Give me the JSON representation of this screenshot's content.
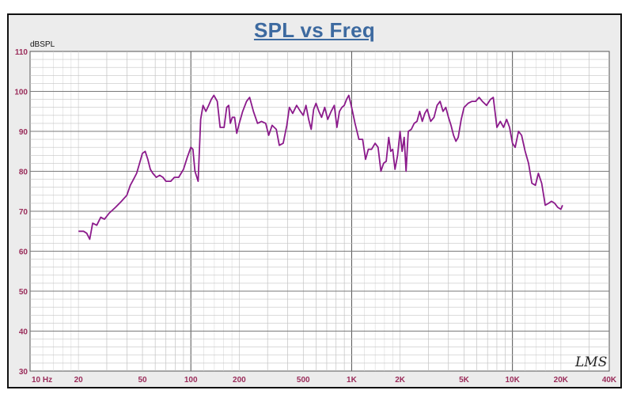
{
  "chart_data": {
    "type": "line",
    "title": "SPL vs Freq",
    "ylabel": "dBSPL",
    "xscale": "log",
    "xlim": [
      10,
      40000
    ],
    "ylim": [
      30,
      110
    ],
    "grid": true,
    "yticks": [
      30,
      40,
      50,
      60,
      70,
      80,
      90,
      100,
      110
    ],
    "xticks": [
      {
        "value": 10,
        "label": "10 Hz"
      },
      {
        "value": 20,
        "label": "20"
      },
      {
        "value": 50,
        "label": "50"
      },
      {
        "value": 100,
        "label": "100"
      },
      {
        "value": 200,
        "label": "200"
      },
      {
        "value": 500,
        "label": "500"
      },
      {
        "value": 1000,
        "label": "1K"
      },
      {
        "value": 2000,
        "label": "2K"
      },
      {
        "value": 5000,
        "label": "5K"
      },
      {
        "value": 10000,
        "label": "10K"
      },
      {
        "value": 20000,
        "label": "20K"
      },
      {
        "value": 40000,
        "label": "40K"
      }
    ],
    "series": [
      {
        "color": "#8b1a8b",
        "points": [
          [
            20,
            65
          ],
          [
            21.5,
            65
          ],
          [
            22.5,
            64.5
          ],
          [
            23.5,
            63
          ],
          [
            24.5,
            67
          ],
          [
            26,
            66.5
          ],
          [
            27.5,
            68.5
          ],
          [
            29,
            68
          ],
          [
            31,
            69.5
          ],
          [
            34,
            71
          ],
          [
            37,
            72.5
          ],
          [
            40,
            74
          ],
          [
            42,
            76.5
          ],
          [
            44,
            78
          ],
          [
            46,
            79.5
          ],
          [
            48,
            82
          ],
          [
            50,
            84.5
          ],
          [
            52,
            85
          ],
          [
            54,
            83
          ],
          [
            56,
            80.5
          ],
          [
            58,
            79.5
          ],
          [
            61,
            78.5
          ],
          [
            64,
            79
          ],
          [
            67,
            78.5
          ],
          [
            70,
            77.5
          ],
          [
            75,
            77.5
          ],
          [
            79,
            78.5
          ],
          [
            84,
            78.5
          ],
          [
            90,
            80.5
          ],
          [
            95,
            83.5
          ],
          [
            100,
            86
          ],
          [
            103,
            85.5
          ],
          [
            106,
            80
          ],
          [
            111,
            77.5
          ],
          [
            115,
            93
          ],
          [
            119,
            96.5
          ],
          [
            124,
            95
          ],
          [
            129,
            96.5
          ],
          [
            134,
            98
          ],
          [
            139,
            99
          ],
          [
            146,
            97.5
          ],
          [
            152,
            91
          ],
          [
            161,
            91
          ],
          [
            167,
            96
          ],
          [
            172,
            96.5
          ],
          [
            176,
            92
          ],
          [
            181,
            93.5
          ],
          [
            187,
            93.5
          ],
          [
            193,
            89.5
          ],
          [
            200,
            92
          ],
          [
            210,
            95
          ],
          [
            222,
            97.5
          ],
          [
            232,
            98.5
          ],
          [
            245,
            95
          ],
          [
            260,
            92
          ],
          [
            275,
            92.5
          ],
          [
            292,
            92
          ],
          [
            305,
            89
          ],
          [
            320,
            91.5
          ],
          [
            340,
            90.5
          ],
          [
            355,
            86.5
          ],
          [
            375,
            87
          ],
          [
            395,
            91.5
          ],
          [
            410,
            96
          ],
          [
            430,
            94.5
          ],
          [
            455,
            96.5
          ],
          [
            480,
            95
          ],
          [
            500,
            94
          ],
          [
            520,
            96.5
          ],
          [
            540,
            93
          ],
          [
            560,
            90.5
          ],
          [
            580,
            95.5
          ],
          [
            600,
            97
          ],
          [
            625,
            95
          ],
          [
            650,
            93.5
          ],
          [
            680,
            96
          ],
          [
            710,
            93
          ],
          [
            745,
            95
          ],
          [
            780,
            96.5
          ],
          [
            810,
            91
          ],
          [
            840,
            95
          ],
          [
            870,
            96
          ],
          [
            900,
            96.5
          ],
          [
            930,
            98
          ],
          [
            960,
            99
          ],
          [
            1000,
            96
          ],
          [
            1050,
            92
          ],
          [
            1110,
            88
          ],
          [
            1170,
            88
          ],
          [
            1220,
            83
          ],
          [
            1270,
            85.5
          ],
          [
            1330,
            85.5
          ],
          [
            1400,
            87
          ],
          [
            1460,
            86
          ],
          [
            1520,
            80
          ],
          [
            1580,
            82
          ],
          [
            1640,
            82.5
          ],
          [
            1700,
            88.5
          ],
          [
            1750,
            85
          ],
          [
            1800,
            85.5
          ],
          [
            1860,
            80.5
          ],
          [
            1930,
            84
          ],
          [
            2000,
            90
          ],
          [
            2060,
            85
          ],
          [
            2120,
            88.5
          ],
          [
            2180,
            80
          ],
          [
            2250,
            90
          ],
          [
            2350,
            90.5
          ],
          [
            2450,
            92
          ],
          [
            2550,
            92.5
          ],
          [
            2650,
            95
          ],
          [
            2750,
            92.5
          ],
          [
            2850,
            94.5
          ],
          [
            2950,
            95.5
          ],
          [
            3100,
            92.5
          ],
          [
            3250,
            93.5
          ],
          [
            3400,
            96.5
          ],
          [
            3550,
            97.5
          ],
          [
            3700,
            95
          ],
          [
            3850,
            96
          ],
          [
            4000,
            93.5
          ],
          [
            4150,
            91.5
          ],
          [
            4300,
            89
          ],
          [
            4450,
            87.5
          ],
          [
            4600,
            88.5
          ],
          [
            4800,
            93
          ],
          [
            5000,
            96
          ],
          [
            5300,
            97
          ],
          [
            5600,
            97.5
          ],
          [
            5900,
            97.5
          ],
          [
            6200,
            98.5
          ],
          [
            6500,
            97.5
          ],
          [
            6900,
            96.5
          ],
          [
            7300,
            98
          ],
          [
            7600,
            98.5
          ],
          [
            8000,
            91
          ],
          [
            8400,
            92.5
          ],
          [
            8800,
            91
          ],
          [
            9200,
            93
          ],
          [
            9600,
            91
          ],
          [
            10000,
            87
          ],
          [
            10400,
            86
          ],
          [
            10900,
            90
          ],
          [
            11400,
            89
          ],
          [
            12000,
            85
          ],
          [
            12600,
            82
          ],
          [
            13200,
            77
          ],
          [
            13900,
            76.5
          ],
          [
            14500,
            79.5
          ],
          [
            15200,
            77
          ],
          [
            16000,
            71.5
          ],
          [
            16800,
            72
          ],
          [
            17500,
            72.5
          ],
          [
            18300,
            72
          ],
          [
            19100,
            71
          ],
          [
            20000,
            70.5
          ],
          [
            20500,
            71.5
          ]
        ]
      }
    ],
    "signature": "LMS"
  }
}
